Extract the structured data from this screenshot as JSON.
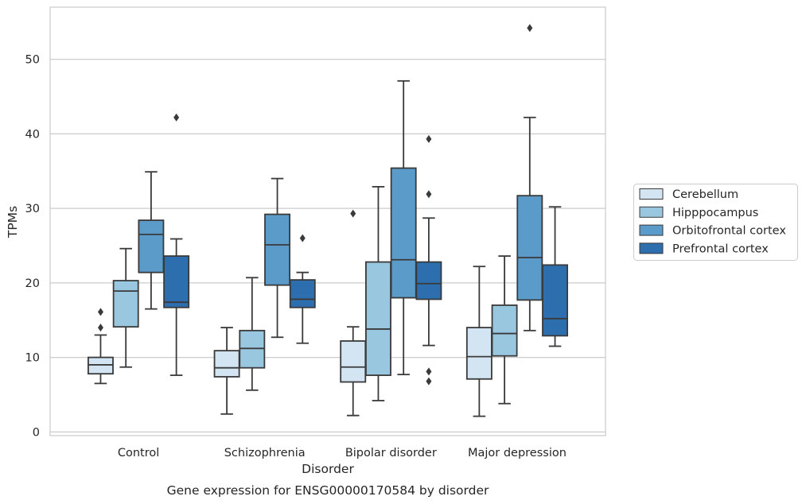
{
  "chart_data": {
    "type": "box",
    "title": "",
    "caption": "Gene expression for ENSG00000170584 by disorder",
    "xlabel": "Disorder",
    "ylabel": "TPMs",
    "ylim": [
      -0.5,
      57
    ],
    "yticks": [
      0,
      10,
      20,
      30,
      40,
      50
    ],
    "grid": "horizontal",
    "legend_position": "right",
    "categories": [
      "Control",
      "Schizophrenia",
      "Bipolar disorder",
      "Major depression"
    ],
    "series": [
      {
        "name": "Cerebellum",
        "color": "#d3e4f3",
        "boxes": [
          {
            "whisker_low": 6.5,
            "q1": 7.8,
            "median": 9.0,
            "q3": 10.0,
            "whisker_high": 13.0,
            "outliers": [
              14.0,
              16.1
            ]
          },
          {
            "whisker_low": 2.4,
            "q1": 7.4,
            "median": 8.6,
            "q3": 10.9,
            "whisker_high": 14.0,
            "outliers": []
          },
          {
            "whisker_low": 2.2,
            "q1": 6.7,
            "median": 8.7,
            "q3": 12.2,
            "whisker_high": 14.1,
            "outliers": [
              29.3
            ]
          },
          {
            "whisker_low": 2.1,
            "q1": 7.1,
            "median": 10.1,
            "q3": 14.0,
            "whisker_high": 22.2,
            "outliers": []
          }
        ]
      },
      {
        "name": "Hipppocampus",
        "color": "#9ac7e0",
        "boxes": [
          {
            "whisker_low": 8.7,
            "q1": 14.1,
            "median": 18.9,
            "q3": 20.3,
            "whisker_high": 24.6,
            "outliers": []
          },
          {
            "whisker_low": 5.6,
            "q1": 8.6,
            "median": 11.2,
            "q3": 13.6,
            "whisker_high": 20.7,
            "outliers": []
          },
          {
            "whisker_low": 4.2,
            "q1": 7.6,
            "median": 13.8,
            "q3": 22.8,
            "whisker_high": 32.9,
            "outliers": []
          },
          {
            "whisker_low": 3.8,
            "q1": 10.2,
            "median": 13.2,
            "q3": 17.0,
            "whisker_high": 23.6,
            "outliers": []
          }
        ]
      },
      {
        "name": "Orbitofrontal cortex",
        "color": "#5a9bc9",
        "boxes": [
          {
            "whisker_low": 16.5,
            "q1": 21.4,
            "median": 26.5,
            "q3": 28.4,
            "whisker_high": 34.9,
            "outliers": []
          },
          {
            "whisker_low": 12.7,
            "q1": 19.7,
            "median": 25.1,
            "q3": 29.2,
            "whisker_high": 34.0,
            "outliers": []
          },
          {
            "whisker_low": 7.7,
            "q1": 18.0,
            "median": 23.1,
            "q3": 35.4,
            "whisker_high": 47.1,
            "outliers": []
          },
          {
            "whisker_low": 13.6,
            "q1": 17.7,
            "median": 23.4,
            "q3": 31.7,
            "whisker_high": 42.2,
            "outliers": [
              54.2
            ]
          }
        ]
      },
      {
        "name": "Prefrontal cortex",
        "color": "#2d6fae",
        "boxes": [
          {
            "whisker_low": 7.6,
            "q1": 16.7,
            "median": 17.4,
            "q3": 23.6,
            "whisker_high": 25.9,
            "outliers": [
              42.2
            ]
          },
          {
            "whisker_low": 11.9,
            "q1": 16.7,
            "median": 17.8,
            "q3": 20.4,
            "whisker_high": 21.4,
            "outliers": [
              26.0
            ]
          },
          {
            "whisker_low": 11.6,
            "q1": 17.8,
            "median": 19.9,
            "q3": 22.8,
            "whisker_high": 28.7,
            "outliers": [
              39.3,
              31.9,
              8.1,
              6.8
            ]
          },
          {
            "whisker_low": 11.5,
            "q1": 12.9,
            "median": 15.2,
            "q3": 22.4,
            "whisker_high": 30.2,
            "outliers": []
          }
        ]
      }
    ]
  }
}
